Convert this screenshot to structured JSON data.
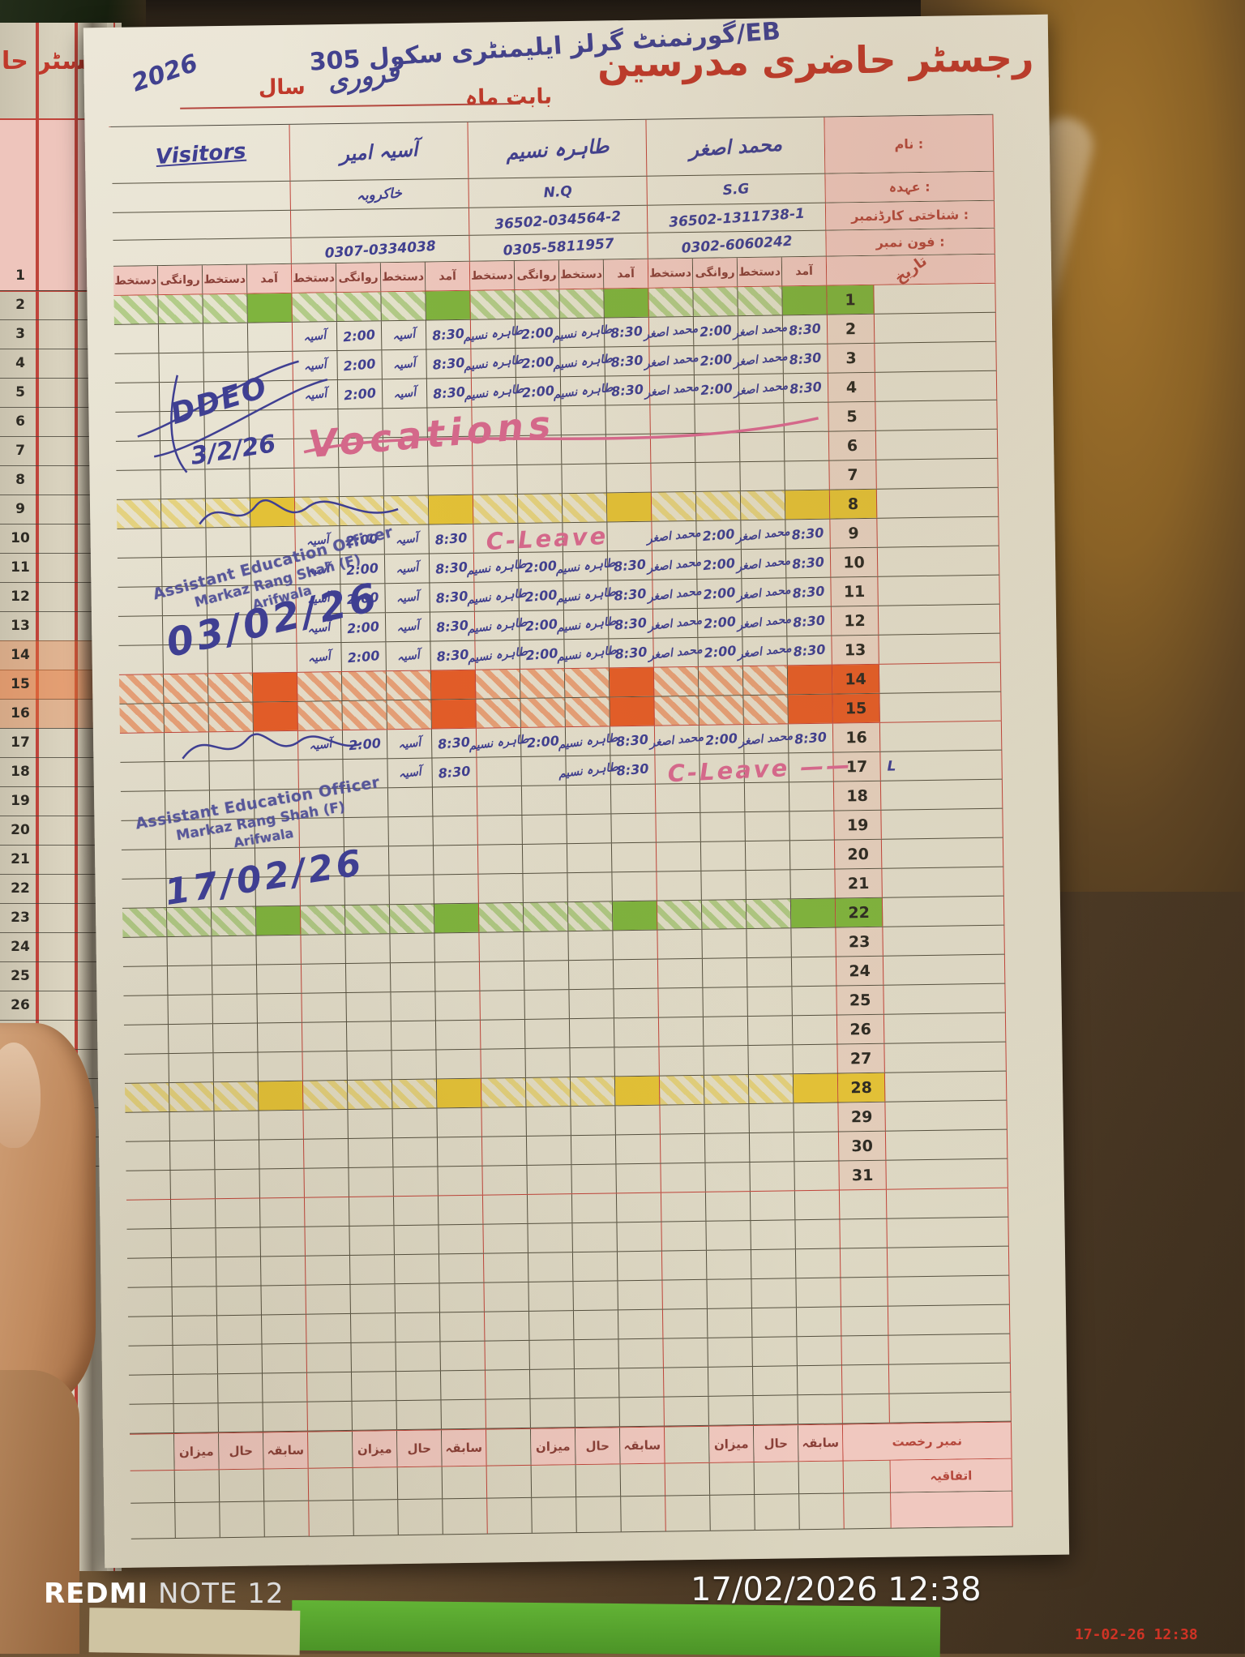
{
  "header": {
    "title": "رجسٹر حاضری مدرسین",
    "school_name": "گورنمنٹ گرلز ایلیمنٹری سکول 305/EB",
    "month_label": "بابت ماہ",
    "month_value": "فروری",
    "year_label": "سال",
    "year_value": "2026"
  },
  "info_labels": {
    "name": "نام :",
    "designation": "عہدہ :",
    "cnic": "شناختی کارڈنمبر :",
    "phone": "فون نمبر :",
    "date": "تاریخ"
  },
  "columns": {
    "arrival": "آمد",
    "signature": "دستخط",
    "departure": "روانگی"
  },
  "teachers": [
    {
      "key": "asghar",
      "name": "محمد اصغر",
      "designation": "S.G",
      "cnic": "36502-1311738-1",
      "phone": "0302-6060242",
      "sig": "محمد اصغر"
    },
    {
      "key": "tahira",
      "name": "طاہرہ نسیم",
      "designation": "N.Q",
      "cnic": "36502-034564-2",
      "phone": "0305-5811957",
      "sig": "طاہرہ نسیم"
    },
    {
      "key": "asia",
      "name": "آسیہ امیر",
      "designation": "خاکروبہ",
      "cnic": "",
      "phone": "0307-0334038",
      "sig": "آسیہ"
    },
    {
      "key": "visitors",
      "name": "Visitors",
      "designation": "",
      "cnic": "",
      "phone": "",
      "sig": ""
    }
  ],
  "attendance": {
    "rows": [
      {
        "d": 1,
        "mark": "green"
      },
      {
        "d": 2,
        "present": {
          "asia": {
            "in": "8:30",
            "out": "2:00"
          },
          "tahira": {
            "in": "8:30",
            "out": "2:00"
          },
          "asghar": {
            "in": "8:30",
            "out": "2:00"
          }
        }
      },
      {
        "d": 3,
        "present": {
          "asia": {
            "in": "8:30",
            "out": "2:00"
          },
          "tahira": {
            "in": "8:30",
            "out": "2:00"
          },
          "asghar": {
            "in": "8:30",
            "out": "2:00"
          }
        }
      },
      {
        "d": 4,
        "present": {
          "asia": {
            "in": "8:30",
            "out": "2:00"
          },
          "tahira": {
            "in": "8:30",
            "out": "2:00"
          },
          "asghar": {
            "in": "8:30",
            "out": "2:00"
          }
        }
      },
      {
        "d": 5
      },
      {
        "d": 6
      },
      {
        "d": 7
      },
      {
        "d": 8,
        "mark": "yellow"
      },
      {
        "d": 9,
        "present": {
          "asia": {
            "in": "8:30",
            "out": "2:00"
          },
          "asghar": {
            "in": "8:30",
            "out": "2:00"
          }
        }
      },
      {
        "d": 10,
        "present": {
          "asia": {
            "in": "8:30",
            "out": "2:00"
          },
          "tahira": {
            "in": "8:30",
            "out": "2:00"
          },
          "asghar": {
            "in": "8:30",
            "out": "2:00"
          }
        }
      },
      {
        "d": 11,
        "present": {
          "asia": {
            "in": "8:30",
            "out": "2:00"
          },
          "tahira": {
            "in": "8:30",
            "out": "2:00"
          },
          "asghar": {
            "in": "8:30",
            "out": "2:00"
          }
        }
      },
      {
        "d": 12,
        "present": {
          "asia": {
            "in": "8:30",
            "out": "2:00"
          },
          "tahira": {
            "in": "8:30",
            "out": "2:00"
          },
          "asghar": {
            "in": "8:30",
            "out": "2:00"
          }
        }
      },
      {
        "d": 13,
        "present": {
          "asia": {
            "in": "8:30",
            "out": "2:00"
          },
          "tahira": {
            "in": "8:30",
            "out": "2:00"
          },
          "asghar": {
            "in": "8:30",
            "out": "2:00"
          }
        }
      },
      {
        "d": 14,
        "mark": "orange"
      },
      {
        "d": 15,
        "mark": "orange"
      },
      {
        "d": 16,
        "present": {
          "asia": {
            "in": "8:30",
            "out": "2:00"
          },
          "tahira": {
            "in": "8:30",
            "out": "2:00"
          },
          "asghar": {
            "in": "8:30",
            "out": "2:00"
          }
        }
      },
      {
        "d": 17,
        "present": {
          "asia": {
            "in": "8:30",
            "out": ""
          },
          "tahira": {
            "in": "8:30",
            "out": ""
          }
        }
      },
      {
        "d": 18
      },
      {
        "d": 19
      },
      {
        "d": 20
      },
      {
        "d": 21
      },
      {
        "d": 22,
        "mark": "green"
      },
      {
        "d": 23
      },
      {
        "d": 24
      },
      {
        "d": 25
      },
      {
        "d": 26
      },
      {
        "d": 27
      },
      {
        "d": 28,
        "mark": "yellow"
      },
      {
        "d": 29
      },
      {
        "d": 30
      },
      {
        "d": 31
      }
    ]
  },
  "annotations": {
    "vacations_text": "Vocations",
    "c_leave_text": "C-Leave",
    "c_leaves": [
      {
        "row": 9,
        "group": "tahira",
        "dash": false
      },
      {
        "row": 17,
        "group": "asghar",
        "dash": true
      }
    ],
    "ddeo_sig": "DDEO",
    "ddeo_date": "3/2/26",
    "stamp_line1": "Assistant Education Officer",
    "stamp_line2": "Markaz Rang Shah (F)",
    "stamp_line3": "Arifwala",
    "stamp1_date": "03/02/26",
    "stamp2_date": "17/02/26",
    "row17_mark": "L"
  },
  "summary": {
    "previous": "سابقہ",
    "current": "حال",
    "total": "میزان",
    "leave_no_label": "نمبر رخصت",
    "casual_label": "اتفاقیہ"
  },
  "adjacent_page": {
    "partial_title": "رجسٹر حا"
  },
  "watermark": {
    "brand": "REDMI",
    "model": "NOTE 12",
    "datetime": "17/02/2026 12:38",
    "corner": "17-02-26 12:38"
  },
  "colors": {
    "red_print": "#c0392b",
    "blue_ink": "#3f3f92",
    "pink_ink": "#d4688a",
    "green_mark": "#7fb43e",
    "yellow_mark": "#e4c237",
    "orange_mark": "#e55d28"
  }
}
